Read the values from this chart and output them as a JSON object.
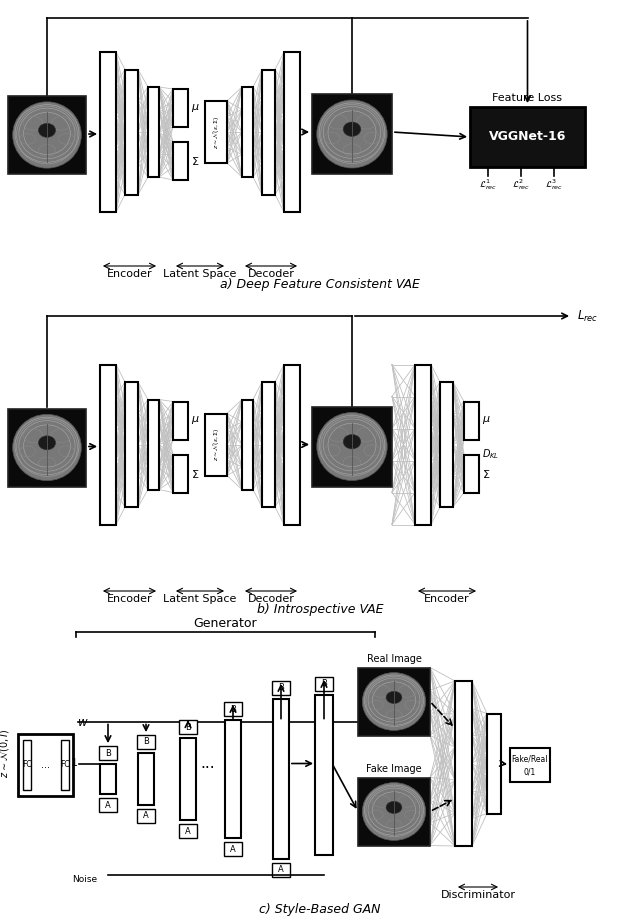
{
  "bg_color": "#ffffff",
  "title_a": "a) Deep Feature Consistent VAE",
  "title_b": "b) Introspective VAE",
  "title_c": "c) Style-Based GAN"
}
